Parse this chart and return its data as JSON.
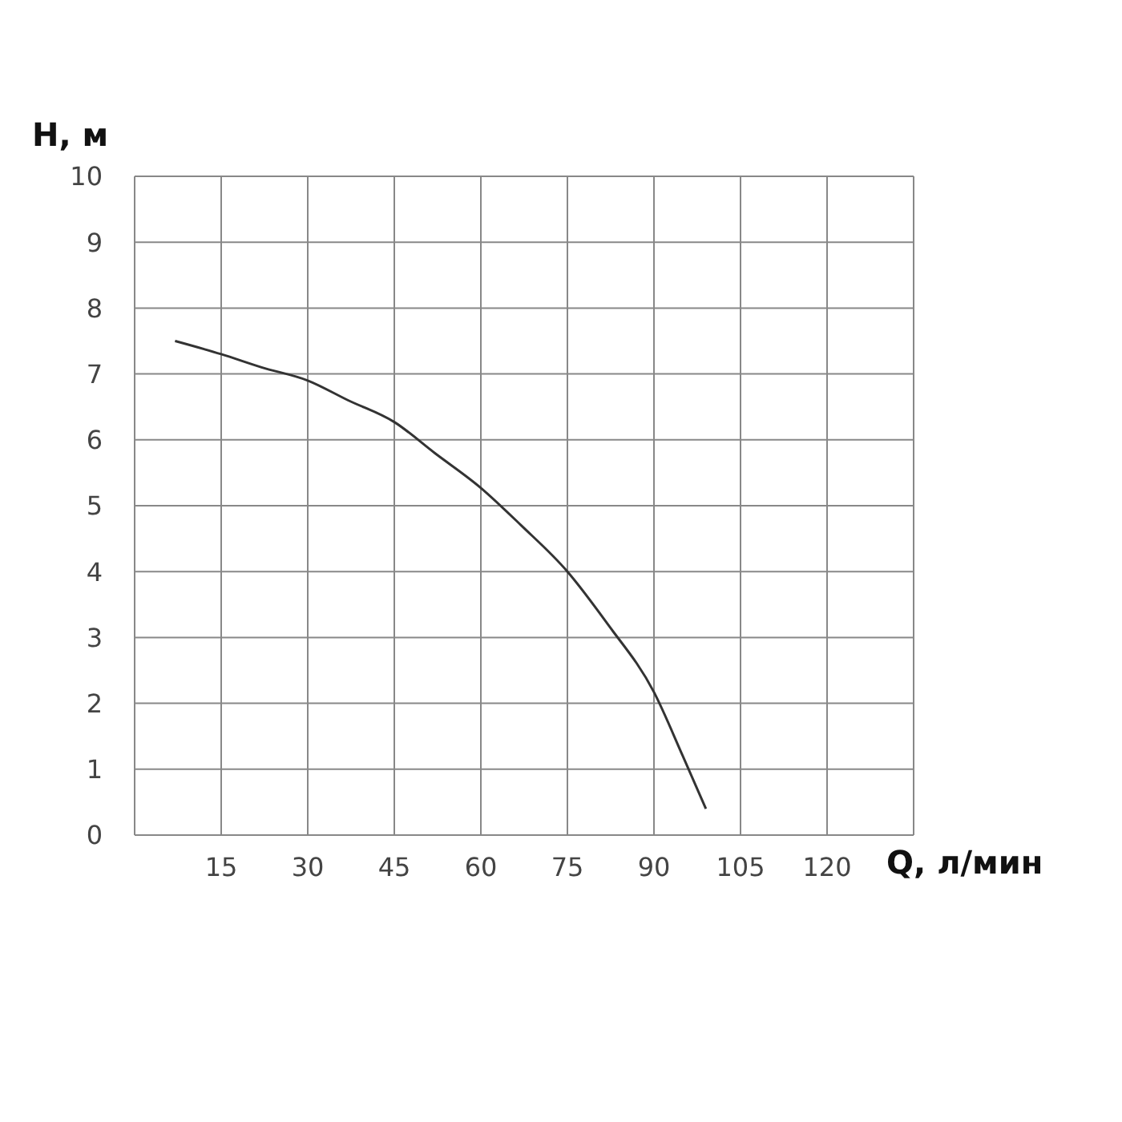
{
  "chart_data": {
    "type": "line",
    "xlabel": "Q, л/мин",
    "ylabel": "H, м",
    "x": [
      7,
      15,
      22,
      30,
      37,
      45,
      52,
      60,
      67,
      75,
      82,
      90,
      95,
      99
    ],
    "series": [
      {
        "color": "#333333",
        "values": [
          7.5,
          7.3,
          7.1,
          6.9,
          6.6,
          6.27,
          5.8,
          5.27,
          4.7,
          4.0,
          3.2,
          2.17,
          1.2,
          0.4
        ]
      }
    ],
    "xlim": [
      0,
      135
    ],
    "xticks": [
      15,
      30,
      45,
      60,
      75,
      90,
      105,
      120
    ],
    "ylim": [
      0,
      10
    ],
    "yticks": [
      0,
      1,
      2,
      3,
      4,
      5,
      6,
      7,
      8,
      9,
      10
    ],
    "grid": true,
    "marker": "none",
    "line_style": "solid"
  }
}
